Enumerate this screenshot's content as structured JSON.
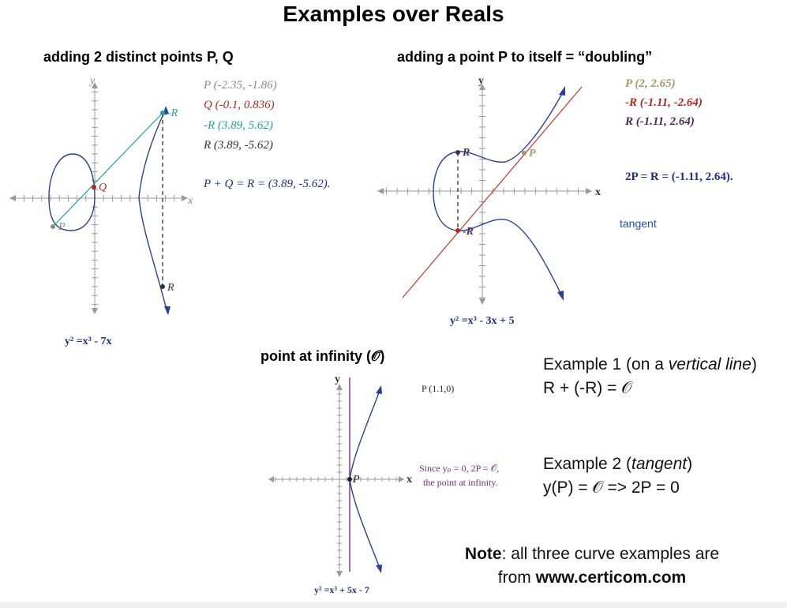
{
  "title": "Examples over Reals",
  "left": {
    "subtitle": "adding 2 distinct points P, Q",
    "y_axis": "y",
    "x_axis": "x",
    "points": {
      "P": "P (-2.35, -1.86)",
      "Q": "Q (-0.1, 0.836)",
      "negR": "-R (3.89, 5.62)",
      "R": "R (3.89, -5.62)"
    },
    "graph_labels": {
      "P": "P",
      "Q": "Q",
      "negR": "-R",
      "R": "R"
    },
    "sum": "P + Q = R = (3.89, -5.62).",
    "equation": "y² =x³ - 7x",
    "colors": {
      "P": "#8a8a8a",
      "Q": "#b3261e",
      "negR": "#1aa5a0",
      "R": "#333333",
      "sum": "#1d2e8f"
    }
  },
  "right": {
    "subtitle": "adding a point P to itself = “doubling”",
    "y_axis": "y",
    "x_axis": "x",
    "points": {
      "P": "P (2, 2.65)",
      "negR": "-R (-1.11, -2.64)",
      "R": "R (-1.11, 2.64)"
    },
    "graph_labels": {
      "P": "P",
      "negR": "-R",
      "R": "R"
    },
    "double": "2P = R = (-1.11, 2.64).",
    "tangent": "tangent",
    "equation": "y² =x³ - 3x + 5",
    "colors": {
      "P": "#a39a6a",
      "negR": "#b3261e",
      "R": "#4a2a5a",
      "double": "#1d2e8f",
      "tangent_line": "#c0392b"
    }
  },
  "infinity": {
    "subtitle": "point at infinity (𝒪)",
    "y_axis": "y",
    "x_axis": "x",
    "point": "P (1.1,0)",
    "graph_label": "P",
    "since_line1": "Since yₚ = 0, 2P = 𝒪,",
    "since_line2": "the point at infinity.",
    "equation": "y² =x³ + 5x - 7",
    "colors": {
      "vertical_line": "#7a2a86",
      "since": "#7a2a86"
    }
  },
  "examples": {
    "ex1_prefix": "Example 1 (on a ",
    "ex1_italic": "vertical line",
    "ex1_suffix": ")",
    "ex1_eq": "R + (-R) = 𝒪",
    "ex2_prefix": "Example 2 (",
    "ex2_italic": "tangent",
    "ex2_suffix": ")",
    "ex2_eq": "y(P) = 𝒪 => 2P = 0"
  },
  "note": {
    "bold": "Note",
    "text": ": all three curve examples are",
    "from": "from ",
    "site": "www.certicom.com"
  },
  "curve_color": "#2b3f9a"
}
